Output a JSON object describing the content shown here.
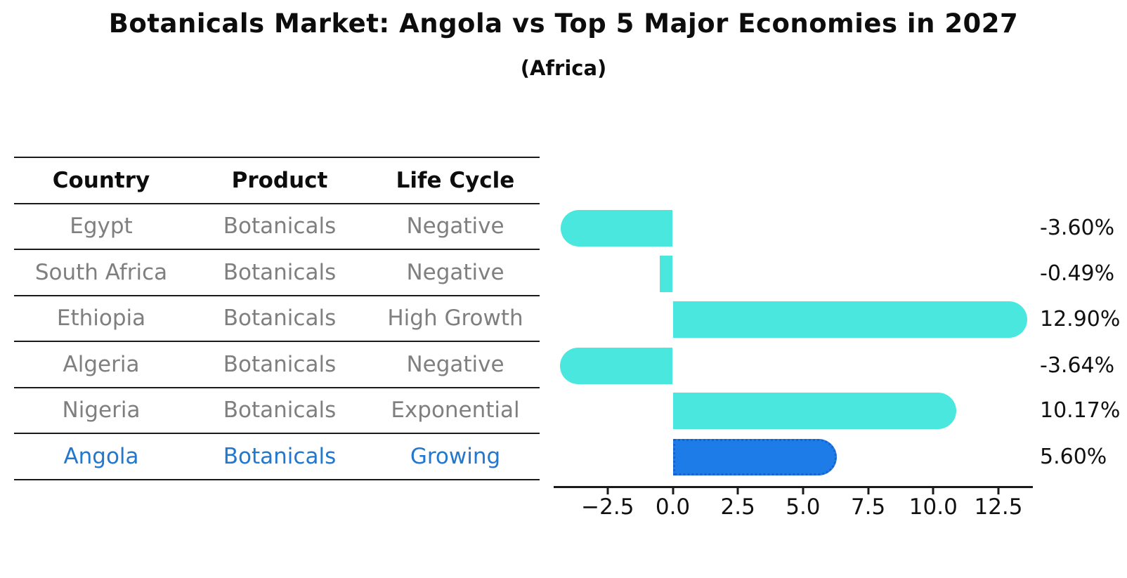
{
  "title": "Botanicals Market: Angola vs Top 5 Major Economies in 2027",
  "subtitle": "(Africa)",
  "colors": {
    "bar_default": "#4AE7DF",
    "bar_highlight": "#1E7CE8",
    "bar_highlight_border": "#1663CC",
    "highlight_text": "#2277CE",
    "table_text": "#7f7f7f",
    "heading_text": "#0d0d0d",
    "axis": "#1a1a1a"
  },
  "table": {
    "headers": [
      "Country",
      "Product",
      "Life Cycle"
    ],
    "rows": [
      {
        "country": "Egypt",
        "product": "Botanicals",
        "life_cycle": "Negative",
        "highlight": false
      },
      {
        "country": "South Africa",
        "product": "Botanicals",
        "life_cycle": "Negative",
        "highlight": false
      },
      {
        "country": "Ethiopia",
        "product": "Botanicals",
        "life_cycle": "High Growth",
        "highlight": false
      },
      {
        "country": "Algeria",
        "product": "Botanicals",
        "life_cycle": "Negative",
        "highlight": false
      },
      {
        "country": "Nigeria",
        "product": "Botanicals",
        "life_cycle": "Exponential",
        "highlight": false
      },
      {
        "country": "Angola",
        "product": "Botanicals",
        "life_cycle": "Growing",
        "highlight": true
      }
    ]
  },
  "chart_data": {
    "type": "bar",
    "orientation": "horizontal",
    "title": "Botanicals Market: Angola vs Top 5 Major Economies in 2027",
    "subtitle": "(Africa)",
    "categories": [
      "Egypt",
      "South Africa",
      "Ethiopia",
      "Algeria",
      "Nigeria",
      "Angola"
    ],
    "values": [
      -3.6,
      -0.49,
      12.9,
      -3.64,
      10.17,
      5.6
    ],
    "value_labels": [
      "-3.60%",
      "-0.49%",
      "12.90%",
      "-3.64%",
      "10.17%",
      "5.60%"
    ],
    "highlight_index": 5,
    "xlabel": "",
    "ylabel": "",
    "x_ticks": [
      -2.5,
      0,
      2.5,
      5,
      7.5,
      10,
      12.5
    ],
    "x_tick_labels": [
      "−2.5",
      "0.0",
      "2.5",
      "5.0",
      "7.5",
      "10.0",
      "12.5"
    ],
    "xlim": [
      -4.57,
      13.83
    ],
    "grid": false,
    "legend": null
  }
}
